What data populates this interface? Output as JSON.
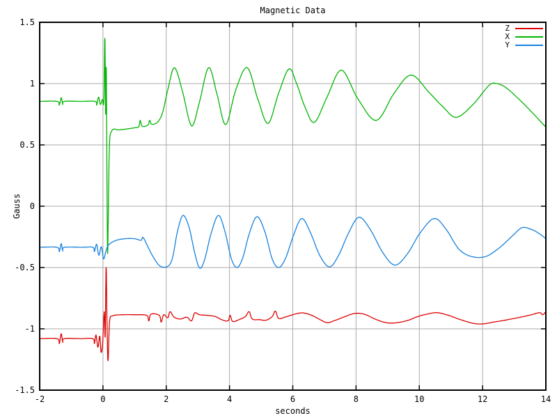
{
  "figure": {
    "title": "Magnetic Data",
    "xlabel": "seconds",
    "ylabel": "Gauss"
  },
  "chart_data": {
    "type": "line",
    "title": "Magnetic Data",
    "xlabel": "seconds",
    "ylabel": "Gauss",
    "xlim": [
      -2,
      14
    ],
    "ylim": [
      -1.5,
      1.5
    ],
    "xticks": [
      -2,
      0,
      2,
      4,
      6,
      8,
      10,
      12,
      14
    ],
    "xtick_labels": [
      "-2",
      "0",
      "2",
      "4",
      "6",
      "8",
      "10",
      "12",
      "14"
    ],
    "yticks": [
      -1.5,
      -1,
      -0.5,
      0,
      0.5,
      1,
      1.5
    ],
    "ytick_labels": [
      "-1.5",
      "-1",
      "-0.5",
      "0",
      "0.5",
      "1",
      "1.5"
    ],
    "grid": true,
    "grid_color": "#aaaaaa",
    "border_color": "#000000",
    "background": "#ffffff",
    "legend_position": "top-right",
    "series": [
      {
        "name": "Z",
        "color": "#dd0000",
        "points": [
          [
            -2,
            -1.08
          ],
          [
            -1.45,
            -1.08
          ],
          [
            -1.38,
            -1.12
          ],
          [
            -1.32,
            -1.04
          ],
          [
            -1.27,
            -1.11
          ],
          [
            -1.22,
            -1.08
          ],
          [
            -0.7,
            -1.08
          ],
          [
            -0.32,
            -1.08
          ],
          [
            -0.27,
            -1.12
          ],
          [
            -0.22,
            -1.05
          ],
          [
            -0.16,
            -1.15
          ],
          [
            -0.1,
            -1.06
          ],
          [
            -0.06,
            -1.19
          ],
          [
            -0.01,
            -1.12
          ],
          [
            0.04,
            -0.86
          ],
          [
            0.07,
            -1.06
          ],
          [
            0.1,
            -0.5
          ],
          [
            0.13,
            -0.97
          ],
          [
            0.16,
            -1.26
          ],
          [
            0.21,
            -0.94
          ],
          [
            0.3,
            -0.895
          ],
          [
            0.6,
            -0.885
          ],
          [
            1.0,
            -0.885
          ],
          [
            1.38,
            -0.89
          ],
          [
            1.45,
            -0.935
          ],
          [
            1.52,
            -0.88
          ],
          [
            1.78,
            -0.89
          ],
          [
            1.84,
            -0.945
          ],
          [
            1.92,
            -0.885
          ],
          [
            2.05,
            -0.91
          ],
          [
            2.12,
            -0.86
          ],
          [
            2.25,
            -0.905
          ],
          [
            2.45,
            -0.92
          ],
          [
            2.65,
            -0.905
          ],
          [
            2.8,
            -0.935
          ],
          [
            2.9,
            -0.87
          ],
          [
            3.05,
            -0.885
          ],
          [
            3.3,
            -0.89
          ],
          [
            3.55,
            -0.9
          ],
          [
            3.75,
            -0.925
          ],
          [
            3.95,
            -0.935
          ],
          [
            4.02,
            -0.89
          ],
          [
            4.1,
            -0.94
          ],
          [
            4.3,
            -0.925
          ],
          [
            4.5,
            -0.9
          ],
          [
            4.62,
            -0.86
          ],
          [
            4.72,
            -0.92
          ],
          [
            4.95,
            -0.925
          ],
          [
            5.15,
            -0.93
          ],
          [
            5.35,
            -0.9
          ],
          [
            5.45,
            -0.855
          ],
          [
            5.55,
            -0.915
          ],
          [
            5.75,
            -0.905
          ],
          [
            6.0,
            -0.885
          ],
          [
            6.3,
            -0.87
          ],
          [
            6.6,
            -0.89
          ],
          [
            6.9,
            -0.93
          ],
          [
            7.1,
            -0.95
          ],
          [
            7.35,
            -0.93
          ],
          [
            7.65,
            -0.9
          ],
          [
            7.95,
            -0.875
          ],
          [
            8.25,
            -0.88
          ],
          [
            8.6,
            -0.92
          ],
          [
            8.95,
            -0.95
          ],
          [
            9.3,
            -0.95
          ],
          [
            9.65,
            -0.93
          ],
          [
            9.95,
            -0.9
          ],
          [
            10.25,
            -0.88
          ],
          [
            10.55,
            -0.868
          ],
          [
            10.9,
            -0.888
          ],
          [
            11.3,
            -0.925
          ],
          [
            11.7,
            -0.955
          ],
          [
            12.0,
            -0.96
          ],
          [
            12.35,
            -0.945
          ],
          [
            12.7,
            -0.93
          ],
          [
            13.1,
            -0.91
          ],
          [
            13.5,
            -0.888
          ],
          [
            13.8,
            -0.868
          ],
          [
            13.9,
            -0.885
          ],
          [
            14,
            -0.86
          ]
        ]
      },
      {
        "name": "X",
        "color": "#00b400",
        "points": [
          [
            -2,
            0.855
          ],
          [
            -1.45,
            0.855
          ],
          [
            -1.38,
            0.825
          ],
          [
            -1.32,
            0.885
          ],
          [
            -1.27,
            0.83
          ],
          [
            -1.22,
            0.855
          ],
          [
            -0.7,
            0.855
          ],
          [
            -0.25,
            0.855
          ],
          [
            -0.2,
            0.825
          ],
          [
            -0.14,
            0.89
          ],
          [
            -0.08,
            0.83
          ],
          [
            -0.02,
            0.87
          ],
          [
            0.03,
            0.86
          ],
          [
            0.06,
            1.37
          ],
          [
            0.085,
            0.75
          ],
          [
            0.105,
            1.12
          ],
          [
            0.13,
            0.1
          ],
          [
            0.15,
            -0.38
          ],
          [
            0.2,
            0.45
          ],
          [
            0.28,
            0.615
          ],
          [
            0.5,
            0.622
          ],
          [
            0.75,
            0.63
          ],
          [
            1.0,
            0.64
          ],
          [
            1.13,
            0.648
          ],
          [
            1.18,
            0.7
          ],
          [
            1.24,
            0.652
          ],
          [
            1.42,
            0.662
          ],
          [
            1.48,
            0.7
          ],
          [
            1.54,
            0.668
          ],
          [
            1.72,
            0.685
          ],
          [
            1.88,
            0.76
          ],
          [
            2.05,
            0.95
          ],
          [
            2.26,
            1.13
          ],
          [
            2.52,
            0.93
          ],
          [
            2.8,
            0.655
          ],
          [
            3.05,
            0.85
          ],
          [
            3.34,
            1.13
          ],
          [
            3.6,
            0.92
          ],
          [
            3.88,
            0.665
          ],
          [
            4.2,
            0.95
          ],
          [
            4.56,
            1.13
          ],
          [
            4.9,
            0.87
          ],
          [
            5.22,
            0.675
          ],
          [
            5.55,
            0.92
          ],
          [
            5.88,
            1.12
          ],
          [
            6.12,
            1.0
          ],
          [
            6.4,
            0.8
          ],
          [
            6.69,
            0.685
          ],
          [
            7.1,
            0.9
          ],
          [
            7.54,
            1.11
          ],
          [
            8.05,
            0.88
          ],
          [
            8.64,
            0.7
          ],
          [
            9.2,
            0.92
          ],
          [
            9.74,
            1.07
          ],
          [
            10.3,
            0.93
          ],
          [
            10.75,
            0.81
          ],
          [
            11.17,
            0.725
          ],
          [
            11.7,
            0.83
          ],
          [
            12.2,
            0.985
          ],
          [
            12.45,
            1.0
          ],
          [
            12.75,
            0.965
          ],
          [
            13.2,
            0.86
          ],
          [
            13.6,
            0.755
          ],
          [
            14,
            0.645
          ]
        ]
      },
      {
        "name": "Y",
        "color": "#1580dd",
        "points": [
          [
            -2,
            -0.335
          ],
          [
            -1.45,
            -0.335
          ],
          [
            -1.38,
            -0.37
          ],
          [
            -1.32,
            -0.305
          ],
          [
            -1.27,
            -0.365
          ],
          [
            -1.22,
            -0.335
          ],
          [
            -0.7,
            -0.335
          ],
          [
            -0.32,
            -0.335
          ],
          [
            -0.27,
            -0.37
          ],
          [
            -0.2,
            -0.31
          ],
          [
            -0.13,
            -0.4
          ],
          [
            -0.05,
            -0.33
          ],
          [
            0.02,
            -0.43
          ],
          [
            0.1,
            -0.36
          ],
          [
            0.18,
            -0.315
          ],
          [
            0.4,
            -0.28
          ],
          [
            0.7,
            -0.265
          ],
          [
            1.0,
            -0.265
          ],
          [
            1.2,
            -0.278
          ],
          [
            1.27,
            -0.255
          ],
          [
            1.42,
            -0.33
          ],
          [
            1.58,
            -0.41
          ],
          [
            1.8,
            -0.487
          ],
          [
            2.05,
            -0.49
          ],
          [
            2.2,
            -0.42
          ],
          [
            2.36,
            -0.2
          ],
          [
            2.53,
            -0.075
          ],
          [
            2.72,
            -0.17
          ],
          [
            2.9,
            -0.38
          ],
          [
            3.06,
            -0.505
          ],
          [
            3.22,
            -0.43
          ],
          [
            3.42,
            -0.22
          ],
          [
            3.65,
            -0.075
          ],
          [
            3.86,
            -0.21
          ],
          [
            4.06,
            -0.43
          ],
          [
            4.24,
            -0.5
          ],
          [
            4.42,
            -0.42
          ],
          [
            4.63,
            -0.22
          ],
          [
            4.87,
            -0.085
          ],
          [
            5.12,
            -0.21
          ],
          [
            5.35,
            -0.43
          ],
          [
            5.56,
            -0.5
          ],
          [
            5.78,
            -0.42
          ],
          [
            6.02,
            -0.24
          ],
          [
            6.28,
            -0.1
          ],
          [
            6.55,
            -0.21
          ],
          [
            6.85,
            -0.4
          ],
          [
            7.16,
            -0.495
          ],
          [
            7.45,
            -0.4
          ],
          [
            7.76,
            -0.22
          ],
          [
            8.09,
            -0.09
          ],
          [
            8.45,
            -0.19
          ],
          [
            8.85,
            -0.38
          ],
          [
            9.23,
            -0.48
          ],
          [
            9.62,
            -0.39
          ],
          [
            10.02,
            -0.22
          ],
          [
            10.47,
            -0.1
          ],
          [
            10.85,
            -0.19
          ],
          [
            11.25,
            -0.35
          ],
          [
            11.65,
            -0.41
          ],
          [
            12.1,
            -0.41
          ],
          [
            12.55,
            -0.335
          ],
          [
            12.95,
            -0.24
          ],
          [
            13.25,
            -0.175
          ],
          [
            13.55,
            -0.19
          ],
          [
            13.8,
            -0.225
          ],
          [
            14,
            -0.265
          ]
        ]
      }
    ]
  }
}
